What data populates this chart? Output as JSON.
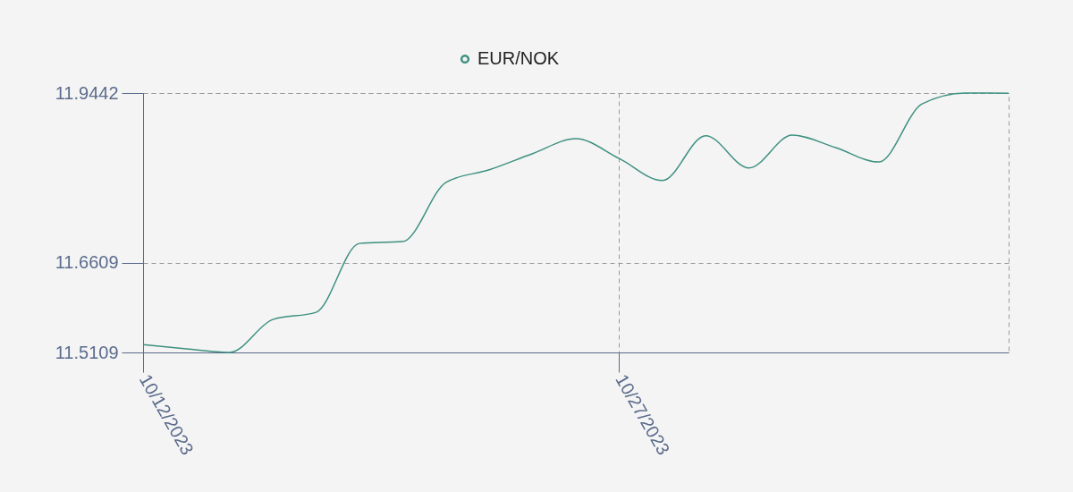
{
  "chart_data": {
    "type": "line",
    "categories": [
      "10/12/2023",
      null,
      null,
      null,
      null,
      null,
      null,
      null,
      null,
      null,
      null,
      "10/27/2023",
      null,
      null,
      null,
      null,
      null,
      null,
      null,
      null,
      null
    ],
    "series": [
      {
        "name": "EUR/NOK",
        "color": "#3d9080",
        "values": [
          11.524,
          11.517,
          11.5109,
          11.566,
          11.578,
          11.693,
          11.696,
          11.795,
          11.816,
          11.843,
          11.868,
          11.835,
          11.798,
          11.873,
          11.819,
          11.874,
          11.853,
          11.829,
          11.926,
          11.9442,
          11.944
        ]
      }
    ],
    "ylim": [
      11.5109,
      11.9442
    ],
    "yticks": [
      11.5109,
      11.6609,
      11.9442
    ],
    "grid": true,
    "legend": "top"
  }
}
